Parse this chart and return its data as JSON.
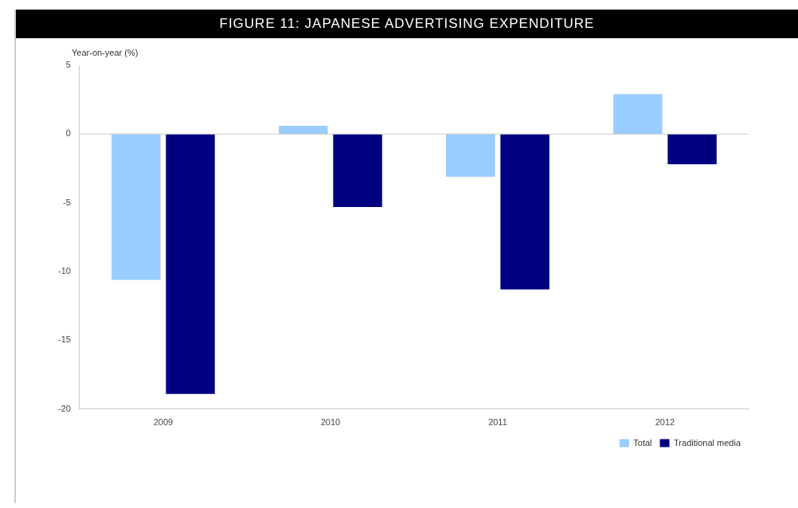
{
  "chart_data": {
    "type": "bar",
    "title": "FIGURE 11: JAPANESE ADVERTISING EXPENDITURE",
    "ylabel": "Year-on-year (%)",
    "categories": [
      "2009",
      "2010",
      "2011",
      "2012"
    ],
    "series": [
      {
        "name": "Total",
        "color": "#99ccff",
        "values": [
          -10.6,
          0.6,
          -3.1,
          2.9
        ]
      },
      {
        "name": "Traditional media",
        "color": "#000080",
        "values": [
          -18.9,
          -5.3,
          -11.3,
          -2.2
        ]
      }
    ],
    "ylim": [
      -20,
      5
    ],
    "yticks": [
      5,
      0,
      -5,
      -10,
      -15,
      -20
    ],
    "grid": false,
    "ref_lines": [
      {
        "axis": "y",
        "value": 0,
        "color": "#cccccc"
      }
    ],
    "legend": "bottom right"
  }
}
